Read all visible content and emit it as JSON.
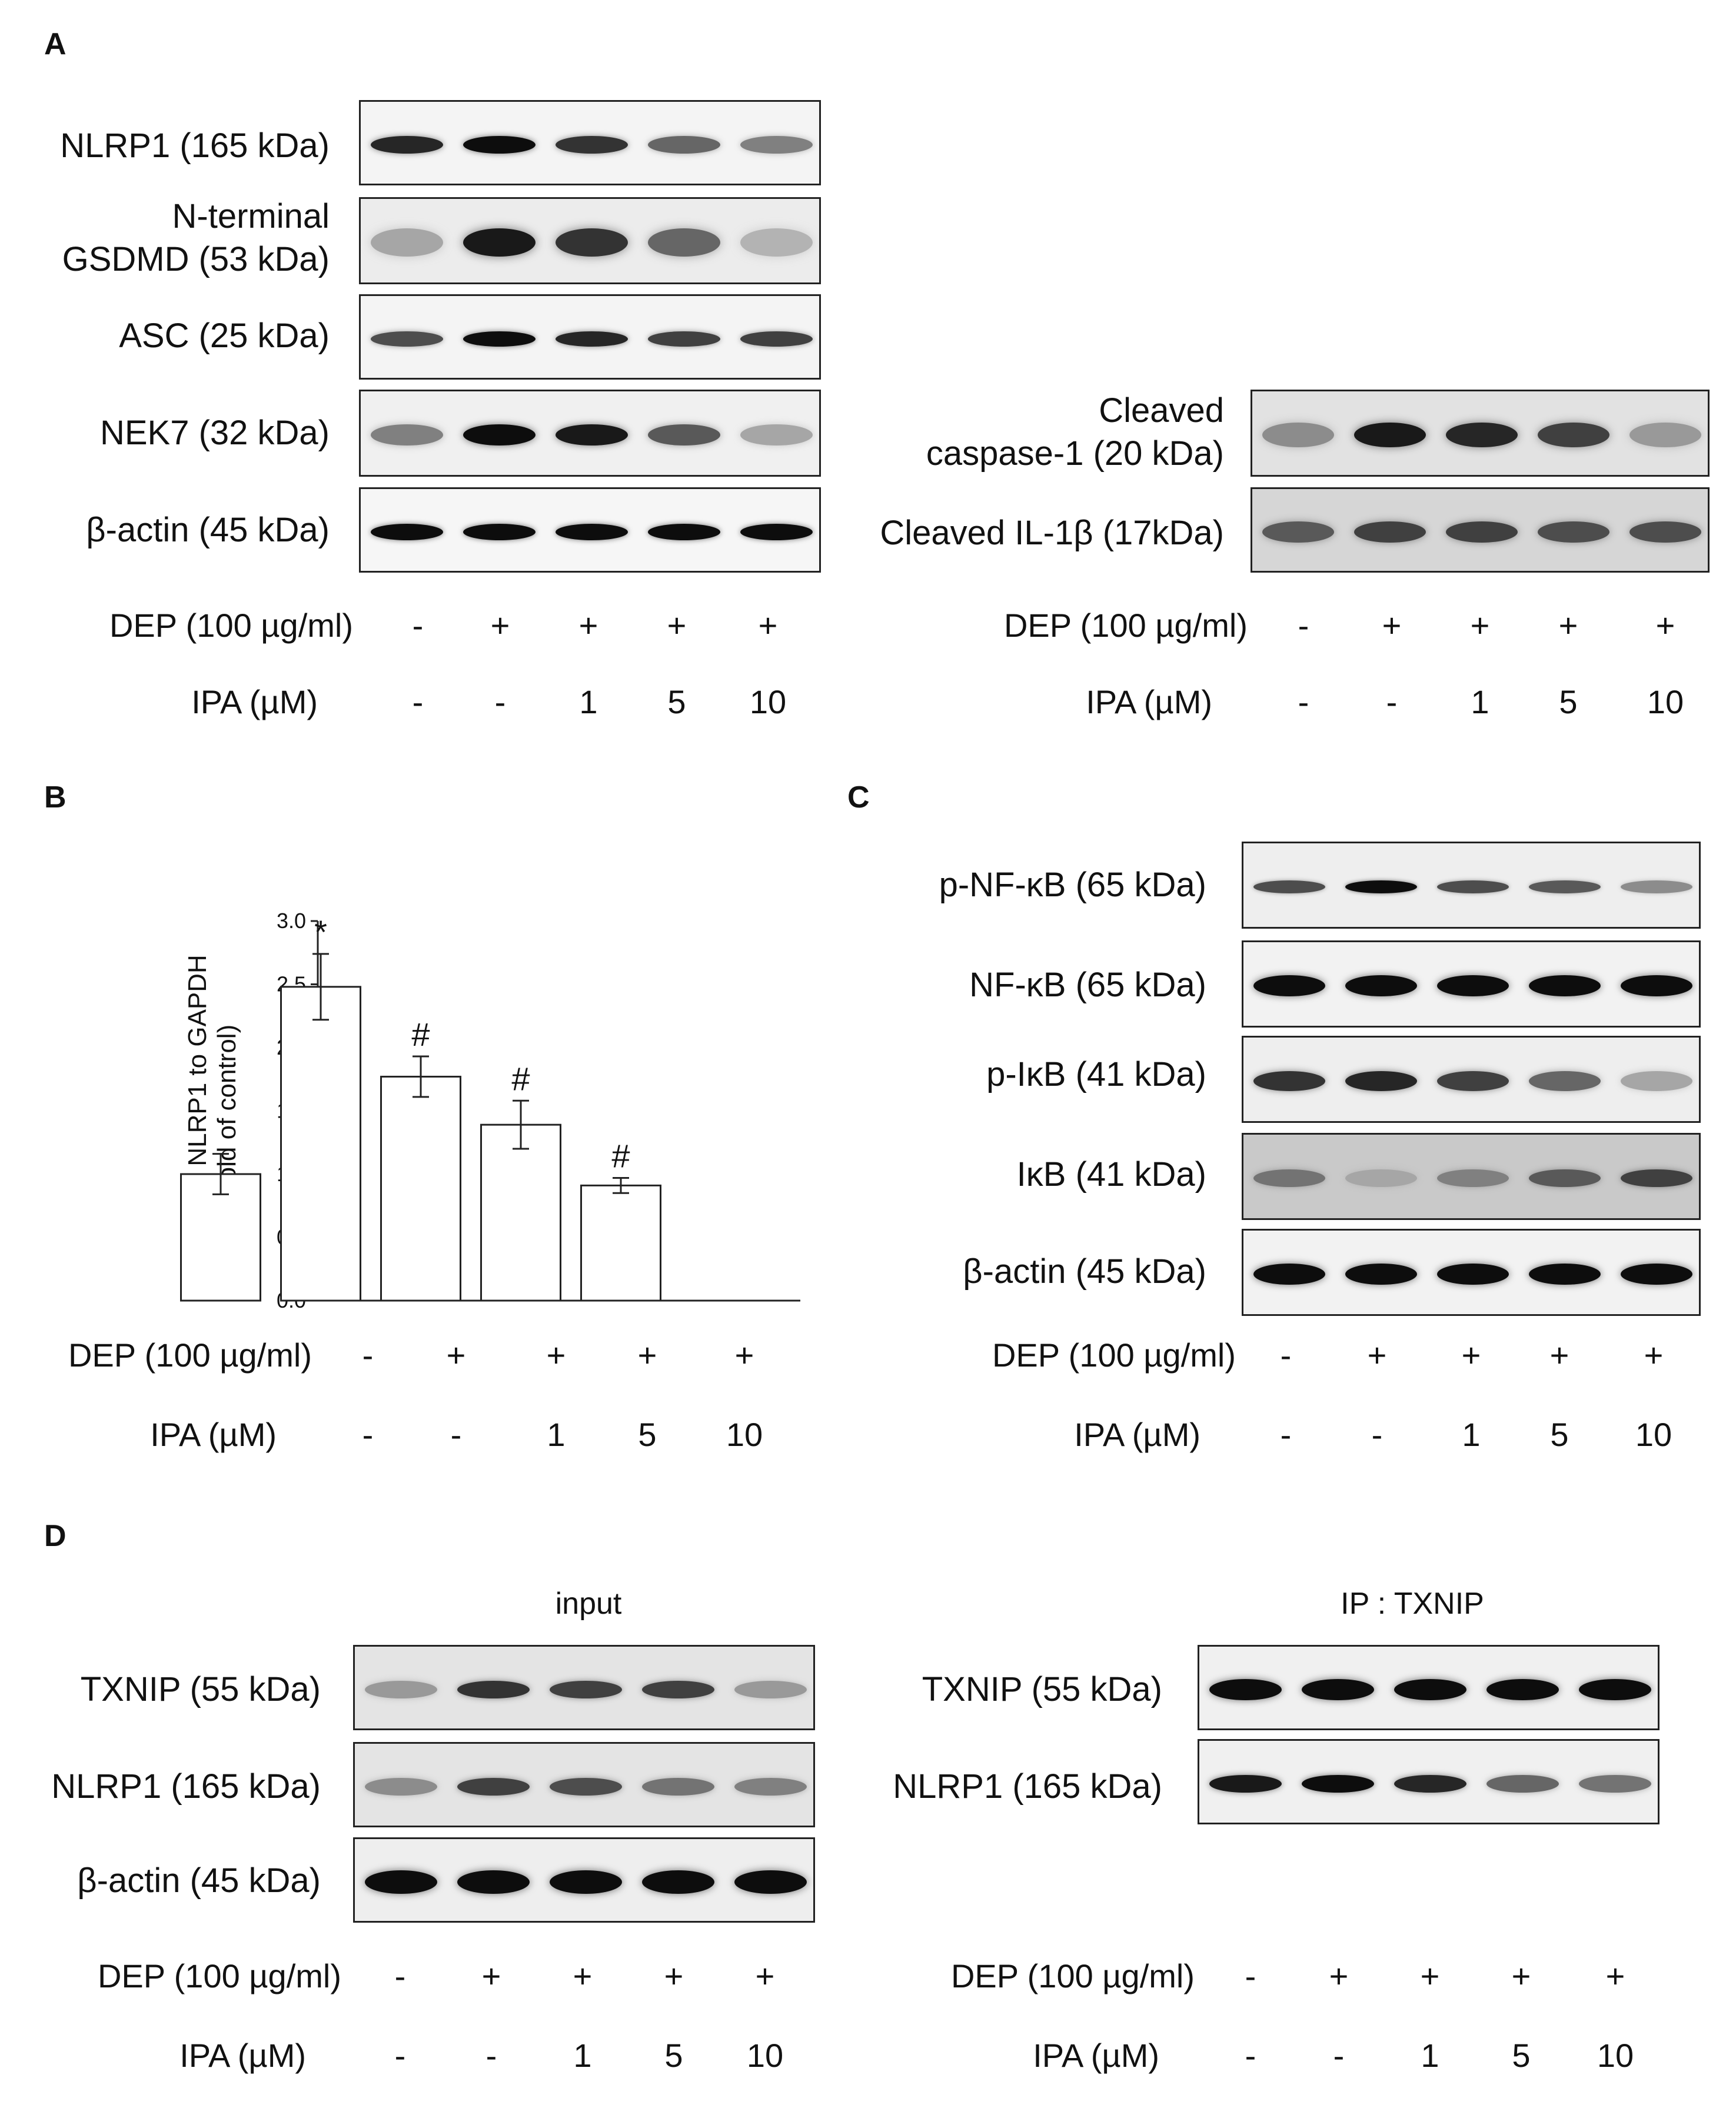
{
  "panels": {
    "A": {
      "letter": "A",
      "left_blots": [
        "NLRP1 (165 kDa)",
        "N-terminal\nGSDMD (53 kDa)",
        "ASC (25 kDa)",
        "NEK7 (32 kDa)",
        "β-actin (45 kDa)"
      ],
      "right_blots": [
        "Cleaved\ncaspase-1 (20 kDa)",
        "Cleaved IL-1β (17kDa)"
      ]
    },
    "B": {
      "letter": "B"
    },
    "C": {
      "letter": "C",
      "blots": [
        "p-NF-κB (65 kDa)",
        "NF-κB (65 kDa)",
        "p-IκB (41 kDa)",
        "IκB (41 kDa)",
        "β-actin (45 kDa)"
      ]
    },
    "D": {
      "letter": "D",
      "input_title": "input",
      "ip_title": "IP : TXNIP",
      "input_blots": [
        "TXNIP (55 kDa)",
        "NLRP1 (165 kDa)",
        "β-actin (45 kDa)"
      ],
      "ip_blots": [
        "TXNIP (55 kDa)",
        "NLRP1 (165 kDa)"
      ]
    }
  },
  "treatments": {
    "dep_label": "DEP (100 µg/ml)",
    "ipa_label": "IPA (µM)",
    "dep_values": [
      "-",
      "+",
      "+",
      "+",
      "+"
    ],
    "ipa_values": [
      "-",
      "-",
      "1",
      "5",
      "10"
    ]
  },
  "band_intensity": {
    "A_NLRP1": [
      0.85,
      0.95,
      0.8,
      0.6,
      0.5
    ],
    "A_GSDMD": [
      0.35,
      0.9,
      0.8,
      0.6,
      0.3
    ],
    "A_ASC": [
      0.7,
      0.95,
      0.85,
      0.75,
      0.75
    ],
    "A_NEK7": [
      0.5,
      0.95,
      0.9,
      0.65,
      0.35
    ],
    "A_actin": [
      0.95,
      0.95,
      0.95,
      0.95,
      0.95
    ],
    "A_casp1": [
      0.45,
      0.9,
      0.85,
      0.75,
      0.4
    ],
    "A_IL1b": [
      0.65,
      0.75,
      0.75,
      0.7,
      0.7
    ],
    "C_pNFkB": [
      0.7,
      0.95,
      0.7,
      0.65,
      0.45
    ],
    "C_NFkB": [
      0.95,
      0.95,
      0.95,
      0.95,
      0.95
    ],
    "C_pIkB": [
      0.8,
      0.85,
      0.75,
      0.6,
      0.35
    ],
    "C_IkB": [
      0.55,
      0.35,
      0.5,
      0.65,
      0.75
    ],
    "C_actin": [
      0.95,
      0.95,
      0.95,
      0.95,
      0.95
    ],
    "D_in_TXNIP": [
      0.4,
      0.8,
      0.75,
      0.75,
      0.4
    ],
    "D_in_NLRP1": [
      0.45,
      0.75,
      0.7,
      0.55,
      0.5
    ],
    "D_in_actin": [
      0.95,
      0.95,
      0.95,
      0.95,
      0.95
    ],
    "D_ip_TXNIP": [
      0.95,
      0.95,
      0.95,
      0.95,
      0.95
    ],
    "D_ip_NLRP1": [
      0.9,
      0.95,
      0.85,
      0.6,
      0.55
    ]
  },
  "chart_data": {
    "type": "bar",
    "categories": [
      "1",
      "2",
      "3",
      "4",
      "5"
    ],
    "values": [
      1.0,
      2.48,
      1.77,
      1.39,
      0.91
    ],
    "errors": [
      0.16,
      0.26,
      0.16,
      0.19,
      0.06
    ],
    "annotations": [
      "",
      "*",
      "#",
      "#",
      "#"
    ],
    "ylabel": "Relative NLRP1 to GAPDH",
    "ylabel2": "(fold of control)",
    "ylim": [
      0,
      3.0
    ],
    "yticks": [
      "0.0",
      "0.5",
      "1.0",
      "1.5",
      "2.0",
      "2.5",
      "3.0"
    ],
    "grid": false
  }
}
